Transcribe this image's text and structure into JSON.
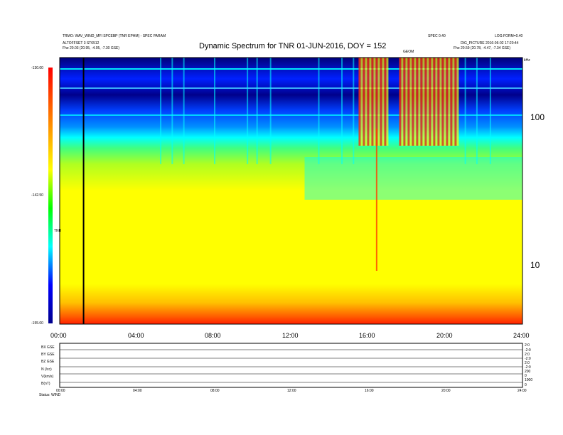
{
  "header": {
    "title": "Dynamic Spectrum for TNR 01-JUN-2016, DOY = 152",
    "info_left_1": "TRMO: WAV_WIND_MFI SPCEBP (TNR EPHM) - SPEC PARAM",
    "info_left_2": "ALTOFFSET 3 ST6512",
    "info_left_3": "Fhe   20.03 (20.95, -4.05, -7.30 GSE)",
    "info_right_1": "SPEC 0.40",
    "info_right_2": "LOG:FORM=0.40",
    "info_right_3": "DIG_PICTURE 2016-06-02 17:20:44",
    "info_right_4": "Fhe   20.59 (20.78, -4.47, -7.34 GSE)",
    "marker_label": "GEOM",
    "right_tiny": "kHz"
  },
  "colorbar": {
    "label": "TNR",
    "ticks": [
      "-130.00",
      "-142.50",
      "-155.00"
    ]
  },
  "yaxis_right": {
    "ticks": [
      "100",
      "10"
    ]
  },
  "xaxis": {
    "ticks": [
      "00:00",
      "04:00",
      "08:00",
      "12:00",
      "16:00",
      "20:00",
      "24:00"
    ]
  },
  "bottom_panels": {
    "labels": [
      "B(nT)",
      "BX GSE",
      "BY GSE",
      "BZ GSE",
      "N (/cc)",
      "V(km/s)"
    ],
    "right_ticks": [
      "2:0",
      "-2:0",
      "2:0",
      "-2:0",
      "2:0",
      "-2:0",
      "200",
      "0",
      "1000",
      "0"
    ],
    "x_ticks": [
      "00:00",
      "04:00",
      "08:00",
      "12:00",
      "16:00",
      "20:00",
      "24:00"
    ],
    "footer": "Status: WIND"
  },
  "chart_data": {
    "type": "heatmap",
    "title": "Dynamic Spectrum for TNR 01-JUN-2016, DOY = 152",
    "xlabel": "",
    "ylabel": "",
    "x_range_hours": [
      0,
      24
    ],
    "y_scale": "log",
    "y_ticks": [
      10,
      100
    ],
    "color_scale": {
      "min": -155.0,
      "max": -130.0,
      "ticks": [
        -130.0,
        -142.5,
        -155.0
      ]
    },
    "colors": [
      "#00008b",
      "#0000ff",
      "#00ffff",
      "#00ff00",
      "#ffff00",
      "#ff8000",
      "#ff0000"
    ],
    "bands": [
      {
        "from": "high",
        "color": "#00008b",
        "hours": [
          0,
          24
        ],
        "desc": "top"
      },
      {
        "color": "#0066ff"
      },
      {
        "color": "#00ffff"
      },
      {
        "color": "#7fff00"
      },
      {
        "color": "#ffff00"
      },
      {
        "color": "#ff8c00"
      },
      {
        "color": "#ff2000"
      }
    ],
    "events": [
      {
        "hours": [
          15.5,
          17.0
        ],
        "color": "#ff3000"
      },
      {
        "hours": [
          17.6,
          20.5
        ],
        "color": "#ff3000"
      }
    ],
    "data_gap_hour": 1.2
  }
}
